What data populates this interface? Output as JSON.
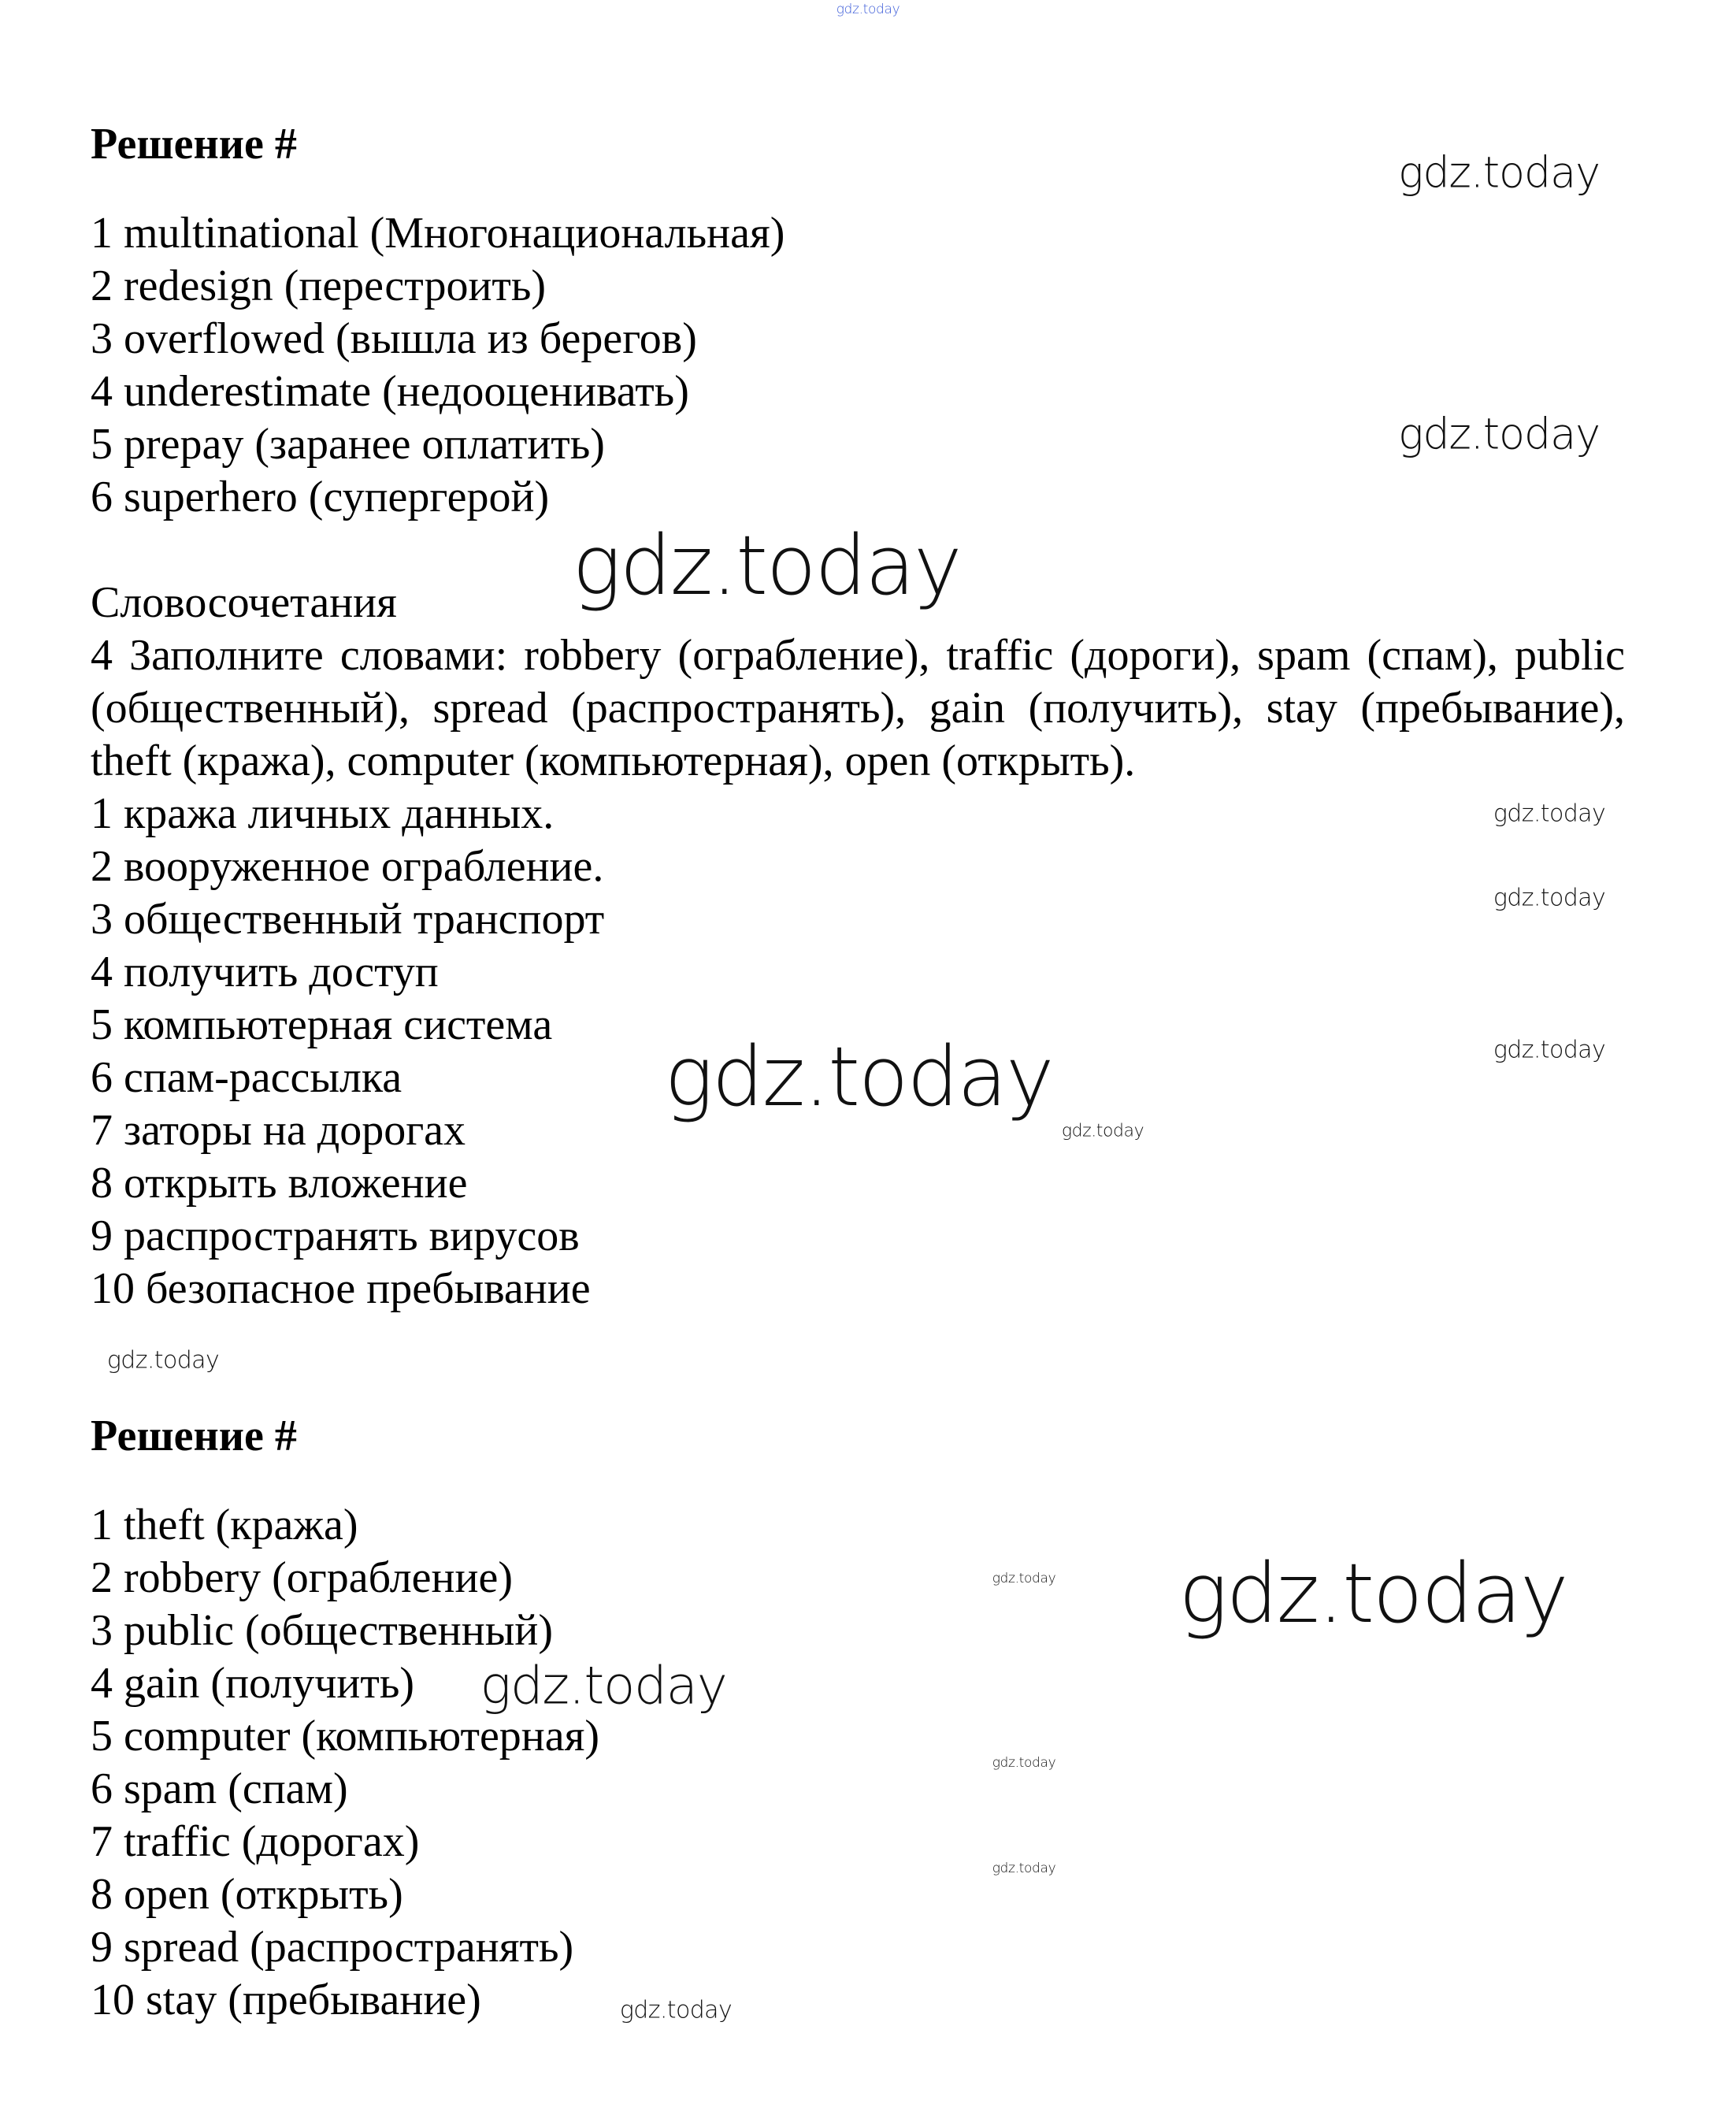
{
  "watermark": "gdz.today",
  "top_watermark": "gdz.today",
  "section1": {
    "title": "Решение #",
    "items": [
      "1 multinational (Многонациональная)",
      "2 redesign (перестроить)",
      "3 overflowed (вышла из берегов)",
      "4 underestimate (недооценивать)",
      "5 prepay (заранее оплатить)",
      "6 superhero (супергерой)"
    ]
  },
  "section2": {
    "heading": "Словосочетания",
    "instruction": "4 Заполните словами: robbery (ограбление), traffic (дороги), spam (спам), public (общественный), spread (распространять), gain (получить), stay (пребывание), theft (кража), computer (компьютерная), open (открыть).",
    "items": [
      "1 кража личных данных.",
      "2 вооруженное ограбление.",
      "3 общественный транспорт",
      "4 получить доступ",
      "5 компьютерная система",
      "6 спам-рассылка",
      "7 заторы на дорогах",
      "8 открыть вложение",
      "9 распространять вирусов",
      "10 безопасное пребывание"
    ]
  },
  "section3": {
    "title": "Решение #",
    "items": [
      "1 theft (кража)",
      "2 robbery (ограбление)",
      "3 public (общественный)",
      "4 gain (получить)",
      "5 computer (компьютерная)",
      "6 spam (спам)",
      "7 traffic (дорогах)",
      "8 open (открыть)",
      "9 spread (распространять)",
      "10 stay (пребывание)"
    ]
  },
  "colors": {
    "top_watermark": "#3b5bd8",
    "text": "#000000"
  }
}
